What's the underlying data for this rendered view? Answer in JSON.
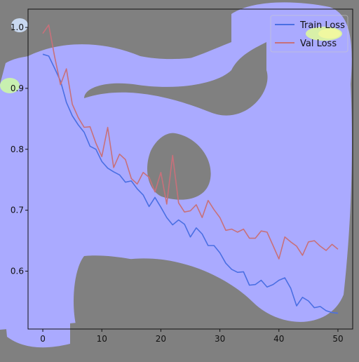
{
  "chart_data": {
    "type": "line",
    "title": "",
    "xlabel": "",
    "ylabel": "",
    "xlim": [
      -2.5,
      52.5
    ],
    "ylim": [
      0.505,
      1.03
    ],
    "xticks": [
      0,
      10,
      20,
      30,
      40,
      50
    ],
    "yticks": [
      0.6,
      0.7,
      0.8,
      0.9,
      1.0
    ],
    "x_tick_labels": [
      "0",
      "10",
      "20",
      "30",
      "40",
      "50"
    ],
    "y_tick_labels": [
      "0.6",
      "0.7",
      "0.8",
      "0.9",
      "1.0"
    ],
    "legend_position": "top-right",
    "overlay": "attention heatmap (blue, with yellow-green hot spots) over gray background",
    "x": [
      0,
      1,
      2,
      3,
      4,
      5,
      6,
      7,
      8,
      9,
      10,
      11,
      12,
      13,
      14,
      15,
      16,
      17,
      18,
      19,
      20,
      21,
      22,
      23,
      24,
      25,
      26,
      27,
      28,
      29,
      30,
      31,
      32,
      33,
      34,
      35,
      36,
      37,
      38,
      39,
      40,
      41,
      42,
      43,
      44,
      45,
      46,
      47,
      48,
      49,
      50
    ],
    "series": [
      {
        "name": "Train Loss",
        "color": "#4a6fe3",
        "values": [
          0.956,
          0.953,
          0.933,
          0.912,
          0.877,
          0.855,
          0.84,
          0.828,
          0.805,
          0.8,
          0.78,
          0.769,
          0.763,
          0.758,
          0.746,
          0.748,
          0.735,
          0.725,
          0.706,
          0.721,
          0.705,
          0.688,
          0.676,
          0.684,
          0.677,
          0.656,
          0.671,
          0.661,
          0.642,
          0.642,
          0.63,
          0.613,
          0.603,
          0.598,
          0.599,
          0.577,
          0.578,
          0.585,
          0.574,
          0.578,
          0.585,
          0.589,
          0.572,
          0.543,
          0.557,
          0.551,
          0.54,
          0.542,
          0.535,
          0.532,
          0.531
        ]
      },
      {
        "name": "Val Loss",
        "color": "#c8707a",
        "values": [
          0.99,
          1.004,
          0.952,
          0.906,
          0.932,
          0.874,
          0.852,
          0.836,
          0.837,
          0.81,
          0.788,
          0.836,
          0.77,
          0.792,
          0.783,
          0.752,
          0.743,
          0.762,
          0.754,
          0.73,
          0.762,
          0.71,
          0.79,
          0.712,
          0.697,
          0.699,
          0.709,
          0.688,
          0.716,
          0.701,
          0.688,
          0.667,
          0.669,
          0.664,
          0.669,
          0.654,
          0.654,
          0.666,
          0.664,
          0.642,
          0.62,
          0.656,
          0.648,
          0.641,
          0.626,
          0.648,
          0.65,
          0.641,
          0.634,
          0.644,
          0.636
        ]
      }
    ]
  }
}
